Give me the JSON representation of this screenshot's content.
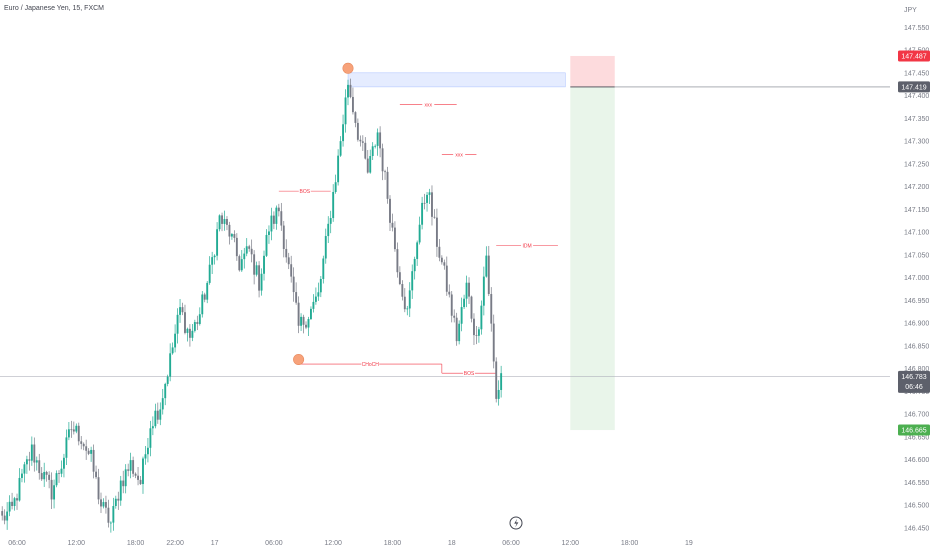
{
  "header": {
    "symbol": "Euro / Japanese Yen, 15, FXCM"
  },
  "chart_data": {
    "type": "candlestick",
    "currency": "JPY",
    "ylim": [
      146.43,
      147.61
    ],
    "y_ticks": [
      "147.550",
      "147.500",
      "147.450",
      "147.400",
      "147.350",
      "147.300",
      "147.250",
      "147.200",
      "147.150",
      "147.100",
      "147.050",
      "147.000",
      "146.950",
      "146.900",
      "146.850",
      "146.800",
      "146.750",
      "146.700",
      "146.650",
      "146.600",
      "146.550",
      "146.500",
      "146.450"
    ],
    "x_ticks": [
      {
        "label": "06:00",
        "bar": 6
      },
      {
        "label": "12:00",
        "bar": 30
      },
      {
        "label": "18:00",
        "bar": 54
      },
      {
        "label": "22:00",
        "bar": 70
      },
      {
        "label": "17",
        "bar": 86
      },
      {
        "label": "06:00",
        "bar": 110
      },
      {
        "label": "12:00",
        "bar": 134
      },
      {
        "label": "18:00",
        "bar": 158
      },
      {
        "label": "18",
        "bar": 182
      },
      {
        "label": "06:00",
        "bar": 206
      },
      {
        "label": "12:00",
        "bar": 230
      },
      {
        "label": "18:00",
        "bar": 254
      },
      {
        "label": "19",
        "bar": 278
      }
    ],
    "keypoints": [
      [
        0,
        146.47
      ],
      [
        4,
        146.49
      ],
      [
        8,
        146.56
      ],
      [
        12,
        146.62
      ],
      [
        16,
        146.57
      ],
      [
        20,
        146.53
      ],
      [
        24,
        146.59
      ],
      [
        28,
        146.67
      ],
      [
        32,
        146.65
      ],
      [
        36,
        146.6
      ],
      [
        40,
        146.5
      ],
      [
        44,
        146.46
      ],
      [
        48,
        146.55
      ],
      [
        52,
        146.59
      ],
      [
        56,
        146.55
      ],
      [
        60,
        146.68
      ],
      [
        64,
        146.72
      ],
      [
        68,
        146.82
      ],
      [
        72,
        146.93
      ],
      [
        76,
        146.87
      ],
      [
        80,
        146.92
      ],
      [
        84,
        147.01
      ],
      [
        88,
        147.13
      ],
      [
        92,
        147.1
      ],
      [
        96,
        147.03
      ],
      [
        100,
        147.06
      ],
      [
        104,
        146.99
      ],
      [
        108,
        147.11
      ],
      [
        112,
        147.15
      ],
      [
        116,
        147.02
      ],
      [
        120,
        146.89
      ],
      [
        124,
        146.92
      ],
      [
        128,
        146.96
      ],
      [
        132,
        147.11
      ],
      [
        136,
        147.26
      ],
      [
        140,
        147.43
      ],
      [
        144,
        147.32
      ],
      [
        148,
        147.23
      ],
      [
        152,
        147.32
      ],
      [
        156,
        147.18
      ],
      [
        160,
        147.03
      ],
      [
        164,
        146.92
      ],
      [
        168,
        147.09
      ],
      [
        172,
        147.2
      ],
      [
        176,
        147.08
      ],
      [
        180,
        146.98
      ],
      [
        184,
        146.87
      ],
      [
        188,
        146.98
      ],
      [
        192,
        146.86
      ],
      [
        196,
        147.05
      ],
      [
        200,
        146.73
      ],
      [
        202,
        146.79
      ]
    ],
    "last_price": "146.783",
    "countdown": "06:46",
    "entry_price": "147.419",
    "stop_price": "147.487",
    "target_price": "146.665",
    "position": {
      "type": "short",
      "entry": 147.419,
      "stop": 147.487,
      "target": 146.665,
      "start_bar": 230,
      "end_bar": 248
    },
    "supply_zone": {
      "low": 147.419,
      "high": 147.45,
      "start_bar": 140,
      "end_bar": 228
    },
    "annotations": [
      {
        "label": "BOS",
        "price": 147.19,
        "x1_bar": 112,
        "x2_bar": 133
      },
      {
        "label": "CHoCH",
        "price": 146.81,
        "x1_bar": 120,
        "x2_bar": 178
      },
      {
        "label": "BOS",
        "price": 146.79,
        "x1_bar": 178,
        "x2_bar": 200
      },
      {
        "label": "IDM",
        "price": 147.07,
        "x1_bar": 200,
        "x2_bar": 225
      },
      {
        "label": "xxx",
        "price": 147.38,
        "x1_bar": 161,
        "x2_bar": 184
      },
      {
        "label": "xxx",
        "price": 147.27,
        "x1_bar": 178,
        "x2_bar": 192
      }
    ],
    "markers": [
      {
        "price": 147.46,
        "bar": 140
      },
      {
        "price": 146.82,
        "bar": 120
      }
    ],
    "colors": {
      "up": "#22ab94",
      "down": "#787b86",
      "stop_tag": "#f23645",
      "target_tag": "#4caf50",
      "last_tag": "#5d606b",
      "marker": "#f7a27a",
      "annotation": "#f23645"
    }
  }
}
